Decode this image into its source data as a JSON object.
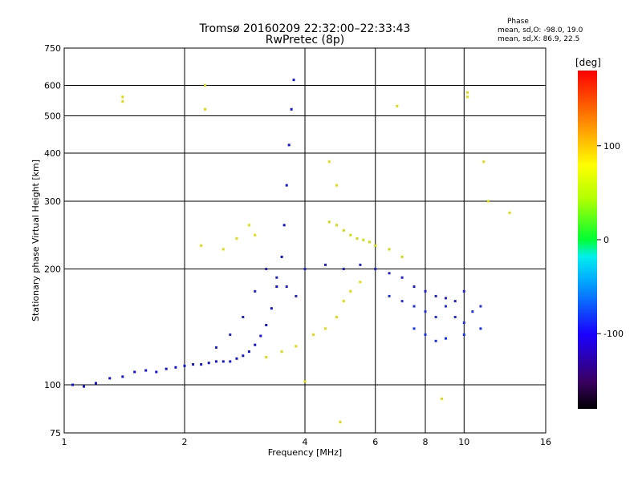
{
  "header": {
    "title": "Tromsø 20160209 22:32:00–22:33:43",
    "subtitle": "RwPretec (8p)"
  },
  "phase_info": {
    "heading": "Phase",
    "line_o": "mean, sd,O: -98.0, 19.0",
    "line_x": "mean, sd,X:  86.9, 22.5"
  },
  "colorbar": {
    "label": "[deg]",
    "ticks": [
      "100",
      "0",
      "-100"
    ],
    "tick_values": [
      100,
      0,
      -100
    ],
    "range": [
      -180,
      180
    ]
  },
  "chart_data": {
    "type": "scatter",
    "xlabel": "Frequency [MHz]",
    "ylabel": "Stationary phase Virtual Height [km]",
    "xscale": "log",
    "yscale": "log",
    "xlim": [
      1,
      16
    ],
    "ylim": [
      75,
      750
    ],
    "grid": true,
    "xticks": [
      {
        "value": 1,
        "label": "1"
      },
      {
        "value": 2,
        "label": "2"
      },
      {
        "value": 4,
        "label": "4"
      },
      {
        "value": 6,
        "label": "6"
      },
      {
        "value": 8,
        "label": "8"
      },
      {
        "value": 10,
        "label": "10"
      },
      {
        "value": 16,
        "label": "16"
      }
    ],
    "yticks": [
      {
        "value": 75,
        "label": "75"
      },
      {
        "value": 100,
        "label": "100"
      },
      {
        "value": 200,
        "label": "200"
      },
      {
        "value": 300,
        "label": "300"
      },
      {
        "value": 400,
        "label": "400"
      },
      {
        "value": 500,
        "label": "500"
      },
      {
        "value": 600,
        "label": "600"
      },
      {
        "value": 750,
        "label": "750"
      }
    ],
    "series": [
      {
        "values": [
          [
            1.05,
            100
          ],
          [
            1.12,
            99
          ],
          [
            1.2,
            101
          ],
          [
            1.3,
            104
          ],
          [
            1.4,
            105
          ],
          [
            1.5,
            108
          ],
          [
            1.6,
            109
          ],
          [
            1.7,
            108
          ],
          [
            1.8,
            110
          ],
          [
            1.9,
            111
          ],
          [
            2.0,
            112
          ],
          [
            2.1,
            113
          ],
          [
            2.2,
            113
          ],
          [
            2.3,
            114
          ],
          [
            2.4,
            115
          ],
          [
            2.5,
            115
          ],
          [
            2.6,
            115
          ],
          [
            2.7,
            117
          ],
          [
            2.8,
            119
          ],
          [
            2.9,
            122
          ],
          [
            3.0,
            127
          ],
          [
            3.1,
            134
          ],
          [
            3.2,
            143
          ],
          [
            3.3,
            158
          ],
          [
            3.4,
            180
          ],
          [
            3.5,
            215
          ],
          [
            3.55,
            260
          ],
          [
            3.6,
            330
          ],
          [
            3.65,
            420
          ],
          [
            3.7,
            520
          ],
          [
            3.75,
            620
          ]
        ]
      },
      {
        "values": [
          [
            2.4,
            125
          ],
          [
            2.6,
            135
          ],
          [
            2.8,
            150
          ],
          [
            3.0,
            175
          ],
          [
            3.2,
            200
          ],
          [
            3.4,
            190
          ],
          [
            3.6,
            180
          ],
          [
            3.8,
            170
          ],
          [
            4.0,
            200
          ],
          [
            4.5,
            205
          ],
          [
            5.0,
            200
          ],
          [
            5.5,
            205
          ],
          [
            6.0,
            200
          ],
          [
            6.5,
            195
          ],
          [
            7.0,
            190
          ],
          [
            7.5,
            180
          ],
          [
            8.0,
            175
          ],
          [
            8.5,
            170
          ],
          [
            9.0,
            168
          ],
          [
            9.5,
            165
          ],
          [
            10.0,
            175
          ]
        ]
      },
      {
        "values": [
          [
            7.5,
            140
          ],
          [
            8.0,
            135
          ],
          [
            8.5,
            130
          ],
          [
            9.0,
            132
          ],
          [
            10.0,
            135
          ],
          [
            11.0,
            140
          ]
        ]
      },
      {
        "values": [
          [
            3.2,
            118
          ],
          [
            3.5,
            122
          ],
          [
            3.8,
            126
          ],
          [
            4.2,
            135
          ],
          [
            4.5,
            140
          ],
          [
            4.8,
            150
          ],
          [
            5.0,
            165
          ],
          [
            5.2,
            175
          ],
          [
            5.5,
            185
          ]
        ]
      },
      {
        "values": [
          [
            4.6,
            265
          ],
          [
            4.8,
            260
          ],
          [
            5.0,
            252
          ],
          [
            5.2,
            245
          ],
          [
            5.4,
            240
          ],
          [
            5.6,
            238
          ],
          [
            5.8,
            235
          ],
          [
            6.0,
            230
          ],
          [
            6.5,
            225
          ],
          [
            7.0,
            215
          ]
        ]
      },
      {
        "values": [
          [
            6.5,
            170
          ],
          [
            7.0,
            165
          ],
          [
            7.5,
            160
          ],
          [
            8.0,
            155
          ],
          [
            8.5,
            150
          ],
          [
            9.0,
            160
          ],
          [
            9.5,
            150
          ],
          [
            10.0,
            145
          ],
          [
            10.5,
            155
          ],
          [
            11.0,
            160
          ]
        ]
      },
      {
        "values": [
          [
            1.4,
            560
          ],
          [
            1.4,
            545
          ],
          [
            2.25,
            600
          ],
          [
            2.25,
            520
          ],
          [
            2.2,
            230
          ],
          [
            2.5,
            225
          ],
          [
            2.7,
            240
          ],
          [
            2.9,
            260
          ],
          [
            3.0,
            245
          ],
          [
            4.6,
            380
          ],
          [
            4.8,
            330
          ],
          [
            6.8,
            530
          ],
          [
            10.2,
            575
          ],
          [
            10.2,
            560
          ],
          [
            11.2,
            380
          ],
          [
            11.5,
            300
          ],
          [
            13.0,
            280
          ],
          [
            4.9,
            80
          ],
          [
            8.8,
            92
          ],
          [
            4.0,
            102
          ]
        ]
      }
    ]
  }
}
